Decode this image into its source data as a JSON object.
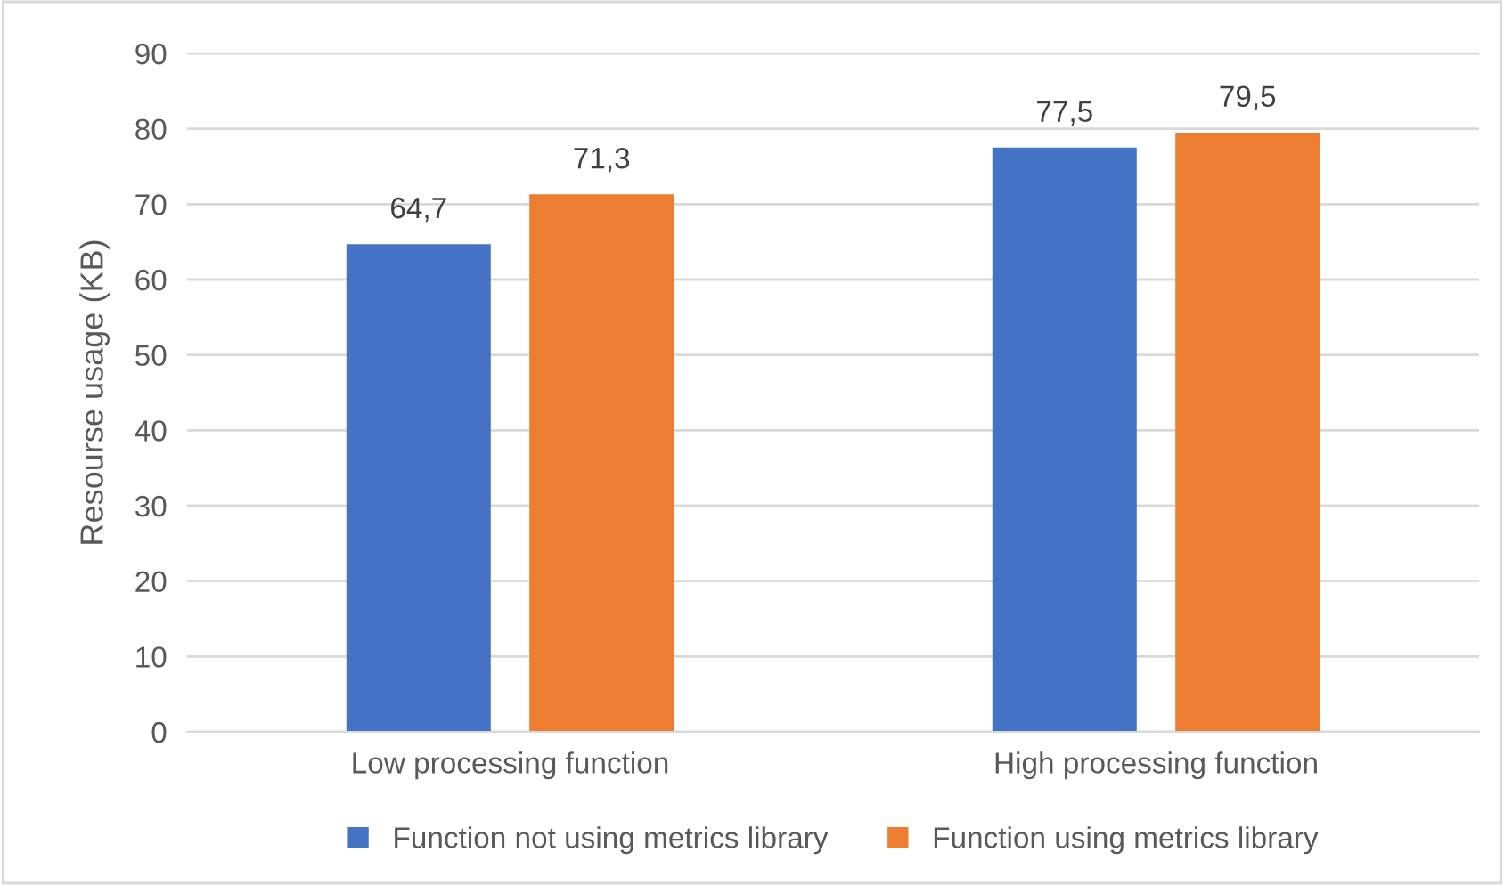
{
  "chart_data": {
    "type": "bar",
    "ylabel": "Resourse usage (KB)",
    "categories": [
      "Low processing function",
      "High processing function"
    ],
    "series": [
      {
        "name": "Function not using metrics library",
        "color": "#4472c4",
        "values": [
          64.7,
          77.5
        ],
        "value_labels": [
          "64,7",
          "77,5"
        ]
      },
      {
        "name": "Function using metrics library",
        "color": "#ed7d31",
        "values": [
          71.3,
          79.5
        ],
        "value_labels": [
          "71,3",
          "79,5"
        ]
      }
    ],
    "ylim": [
      0,
      90
    ],
    "yticks": [
      0,
      10,
      20,
      30,
      40,
      50,
      60,
      70,
      80,
      90
    ],
    "grid": "y",
    "legend": "bottom"
  }
}
